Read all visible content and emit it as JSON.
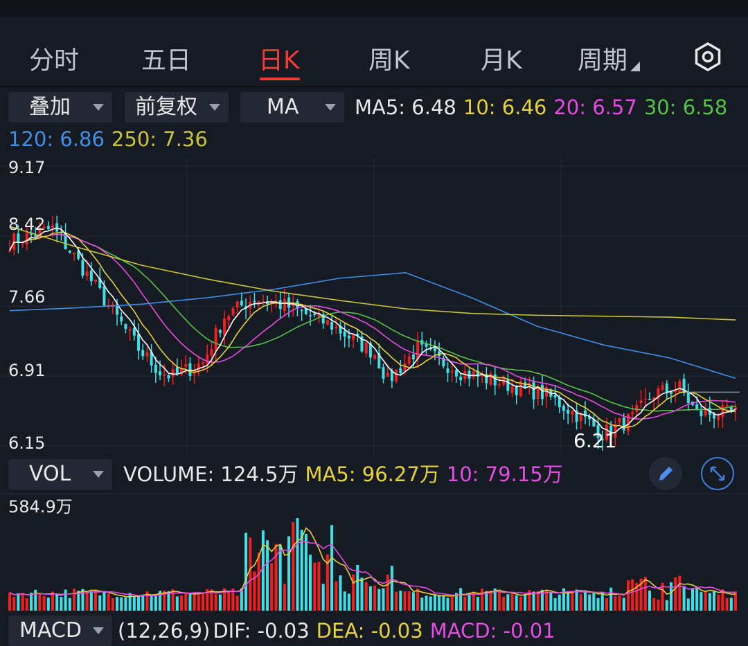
{
  "periods": {
    "tabs": [
      "分时",
      "五日",
      "日K",
      "周K",
      "月K",
      "周期"
    ],
    "active_index": 2
  },
  "controls": {
    "overlay": "叠加",
    "adjust": "前复权",
    "indicator": "MA",
    "vol_indicator": "VOL",
    "macd_indicator": "MACD"
  },
  "ma_legend": {
    "ma5": "MA5: 6.48",
    "ma10": "10: 6.46",
    "ma20": "20: 6.57",
    "ma30": "30: 6.58",
    "ma120": "120: 6.86",
    "ma250": "250: 7.36"
  },
  "vol_legend": {
    "volume": "VOLUME: 124.5万",
    "ma5": "MA5: 96.27万",
    "ma10": "10: 79.15万"
  },
  "macd_legend": {
    "params": "(12,26,9)",
    "dif": "DIF: -0.03",
    "dea": "DEA: -0.03",
    "macd": "MACD: -0.01"
  },
  "colors": {
    "up": "#f21f1f",
    "down": "#3ee0e6",
    "ma5": "#ffffff",
    "ma10": "#e6d33c",
    "ma20": "#e44ce4",
    "ma30": "#56c24a",
    "ma120": "#3f8fe8",
    "ma250": "#c9c43a",
    "accent": "#f23a3a"
  },
  "chart_data": {
    "type": "candlestick",
    "y_ticks": [
      "9.17",
      "8.42",
      "7.66",
      "6.91",
      "6.15"
    ],
    "ylim": [
      6.15,
      9.17
    ],
    "low_marker": "6.21",
    "last_price_line": 6.73,
    "vol_axis_max": "584.9万",
    "ma250": [
      8.52,
      8.3,
      8.1,
      7.95,
      7.82,
      7.72,
      7.63,
      7.58,
      7.56,
      7.55,
      7.54,
      7.51
    ],
    "ma120": [
      7.61,
      7.64,
      7.68,
      7.75,
      7.84,
      7.96,
      8.02,
      7.75,
      7.44,
      7.24,
      7.1,
      6.88
    ],
    "note_series_sampling": "MA120 and MA250 values sampled at 12 evenly spaced points"
  }
}
